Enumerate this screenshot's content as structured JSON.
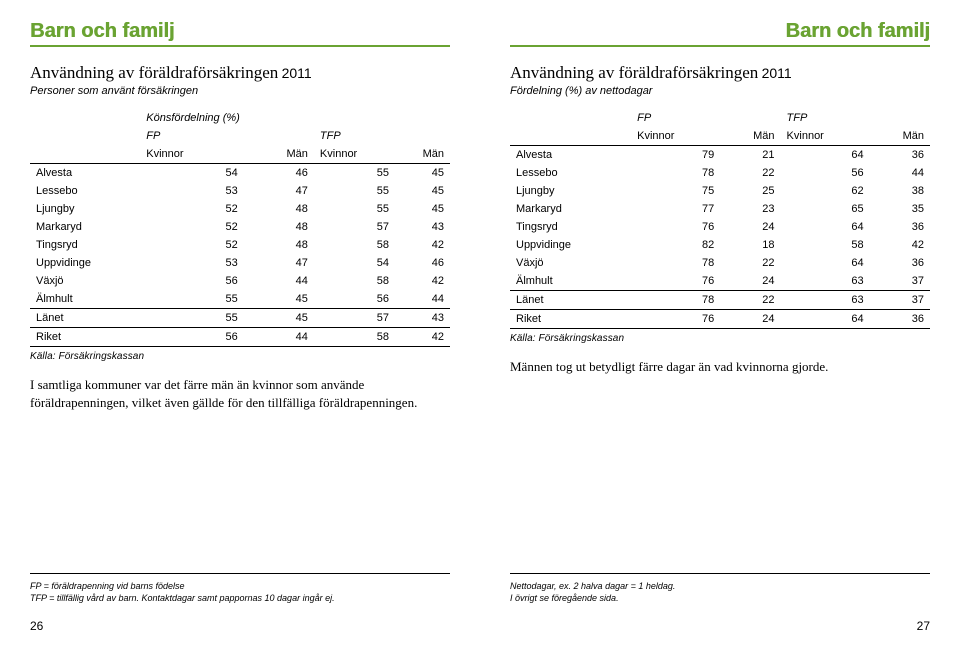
{
  "header": {
    "left": "Barn och familj",
    "right": "Barn och familj"
  },
  "left_page": {
    "title": "Användning av föräldraförsäkringen",
    "year": "2011",
    "subtitle": "Personer som använt försäkringen",
    "group_header": "Könsfördelning (%)",
    "col_groups": [
      "FP",
      "TFP"
    ],
    "cols": [
      "Kvinnor",
      "Män",
      "Kvinnor",
      "Män"
    ],
    "rows": [
      {
        "label": "Alvesta",
        "v": [
          54,
          46,
          55,
          45
        ]
      },
      {
        "label": "Lessebo",
        "v": [
          53,
          47,
          55,
          45
        ]
      },
      {
        "label": "Ljungby",
        "v": [
          52,
          48,
          55,
          45
        ]
      },
      {
        "label": "Markaryd",
        "v": [
          52,
          48,
          57,
          43
        ]
      },
      {
        "label": "Tingsryd",
        "v": [
          52,
          48,
          58,
          42
        ]
      },
      {
        "label": "Uppvidinge",
        "v": [
          53,
          47,
          54,
          46
        ]
      },
      {
        "label": "Växjö",
        "v": [
          56,
          44,
          58,
          42
        ]
      },
      {
        "label": "Älmhult",
        "v": [
          55,
          45,
          56,
          44
        ]
      }
    ],
    "summary1": {
      "label": "Länet",
      "v": [
        55,
        45,
        57,
        43
      ]
    },
    "summary2": {
      "label": "Riket",
      "v": [
        56,
        44,
        58,
        42
      ]
    },
    "source": "Källa: Försäkringskassan",
    "body": "I samtliga kommuner var det färre män än kvinnor som använde föräldrapenningen, vilket även gällde för den tillfälliga föräldrapenningen.",
    "footnote1": "FP = föräldrapenning vid barns födelse",
    "footnote2": "TFP = tillfällig vård av barn. Kontaktdagar samt pappornas 10 dagar ingår ej.",
    "pagenum": "26"
  },
  "right_page": {
    "title": "Användning av föräldraförsäkringen",
    "year": "2011",
    "subtitle": "Fördelning (%) av nettodagar",
    "col_groups": [
      "FP",
      "TFP"
    ],
    "cols": [
      "Kvinnor",
      "Män",
      "Kvinnor",
      "Män"
    ],
    "rows": [
      {
        "label": "Alvesta",
        "v": [
          79,
          21,
          64,
          36
        ]
      },
      {
        "label": "Lessebo",
        "v": [
          78,
          22,
          56,
          44
        ]
      },
      {
        "label": "Ljungby",
        "v": [
          75,
          25,
          62,
          38
        ]
      },
      {
        "label": "Markaryd",
        "v": [
          77,
          23,
          65,
          35
        ]
      },
      {
        "label": "Tingsryd",
        "v": [
          76,
          24,
          64,
          36
        ]
      },
      {
        "label": "Uppvidinge",
        "v": [
          82,
          18,
          58,
          42
        ]
      },
      {
        "label": "Växjö",
        "v": [
          78,
          22,
          64,
          36
        ]
      },
      {
        "label": "Älmhult",
        "v": [
          76,
          24,
          63,
          37
        ]
      }
    ],
    "summary1": {
      "label": "Länet",
      "v": [
        78,
        22,
        63,
        37
      ]
    },
    "summary2": {
      "label": "Riket",
      "v": [
        76,
        24,
        64,
        36
      ]
    },
    "source": "Källa: Försäkringskassan",
    "body": "Männen tog ut betydligt färre dagar än vad kvinnorna gjorde.",
    "footnote1": "Nettodagar, ex. 2 halva dagar = 1 heldag.",
    "footnote2": "I övrigt se föregående sida.",
    "pagenum": "27"
  }
}
